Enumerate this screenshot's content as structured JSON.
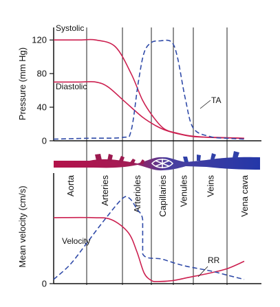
{
  "chart_data": [
    {
      "type": "line",
      "panel": "pressure",
      "title": "",
      "xlabel": "",
      "ylabel": "Pressure (mm Hg)",
      "ylim": [
        0,
        130
      ],
      "yticks": [
        0,
        40,
        80,
        120
      ],
      "grid": false,
      "regions": [
        "Aorta",
        "Arteries",
        "Arterioles",
        "Capillaries",
        "Venules",
        "Veins",
        "Vena cava"
      ],
      "series": [
        {
          "name": "Systolic",
          "color": "#cc1f4f",
          "dash": false,
          "points": [
            [
              0,
              120
            ],
            [
              0.8,
              120
            ],
            [
              1.25,
              120
            ],
            [
              1.8,
              112
            ],
            [
              2.3,
              80
            ],
            [
              2.7,
              48
            ],
            [
              3.1,
              28
            ],
            [
              3.6,
              14
            ],
            [
              4.2,
              9
            ],
            [
              4.8,
              6
            ],
            [
              5.5,
              4
            ],
            [
              6.5,
              3
            ]
          ]
        },
        {
          "name": "Diastolic",
          "color": "#cc1f4f",
          "dash": false,
          "points": [
            [
              0,
              70
            ],
            [
              0.8,
              70
            ],
            [
              1.25,
              70
            ],
            [
              1.6,
              64
            ],
            [
              2.1,
              46
            ],
            [
              2.7,
              28
            ],
            [
              3.2,
              18
            ],
            [
              3.7,
              12
            ],
            [
              4.3,
              8
            ],
            [
              5.0,
              5
            ],
            [
              5.7,
              4
            ],
            [
              6.5,
              3
            ]
          ]
        },
        {
          "name": "TA",
          "color": "#2f4aa8",
          "dash": true,
          "points": [
            [
              0,
              2
            ],
            [
              1.0,
              3
            ],
            [
              2.0,
              4
            ],
            [
              2.3,
              12
            ],
            [
              2.55,
              70
            ],
            [
              2.75,
              105
            ],
            [
              3.0,
              117
            ],
            [
              3.4,
              119
            ],
            [
              3.9,
              118
            ],
            [
              4.2,
              100
            ],
            [
              4.6,
              50
            ],
            [
              5.0,
              15
            ],
            [
              5.5,
              5
            ],
            [
              6.0,
              3
            ],
            [
              6.5,
              2
            ]
          ]
        }
      ],
      "labels": [
        {
          "text": "Systolic",
          "series": "Systolic"
        },
        {
          "text": "Diastolic",
          "series": "Diastolic"
        },
        {
          "text": "TA",
          "series": "TA"
        }
      ]
    },
    {
      "type": "line",
      "panel": "velocity",
      "title": "",
      "xlabel": "",
      "ylabel": "Mean velocity (cm/s)",
      "ylim": [
        0,
        1
      ],
      "yticks": [
        0
      ],
      "grid": false,
      "series": [
        {
          "name": "Velocity",
          "color": "#cc1f4f",
          "dash": false,
          "points": [
            [
              0,
              0.62
            ],
            [
              1.2,
              0.62
            ],
            [
              1.7,
              0.6
            ],
            [
              2.2,
              0.48
            ],
            [
              2.5,
              0.3
            ],
            [
              2.75,
              0.1
            ],
            [
              3.0,
              0.03
            ],
            [
              3.3,
              0.02
            ],
            [
              4.0,
              0.03
            ],
            [
              4.8,
              0.06
            ],
            [
              5.5,
              0.1
            ],
            [
              6.0,
              0.14
            ],
            [
              6.5,
              0.21
            ]
          ]
        },
        {
          "name": "RR",
          "color": "#2f4aa8",
          "dash": true,
          "points": [
            [
              0,
              0.04
            ],
            [
              0.5,
              0.18
            ],
            [
              1.0,
              0.38
            ],
            [
              1.5,
              0.6
            ],
            [
              2.0,
              0.8
            ],
            [
              2.25,
              0.8
            ],
            [
              2.5,
              0.7
            ],
            [
              2.7,
              0.6
            ],
            [
              2.7,
              0.28
            ],
            [
              3.5,
              0.23
            ],
            [
              4.5,
              0.17
            ],
            [
              5.5,
              0.12
            ],
            [
              6.0,
              0.08
            ],
            [
              6.5,
              0.04
            ]
          ]
        }
      ],
      "labels": [
        {
          "text": "Velocity",
          "series": "Velocity"
        },
        {
          "text": "RR",
          "series": "RR"
        }
      ]
    }
  ]
}
